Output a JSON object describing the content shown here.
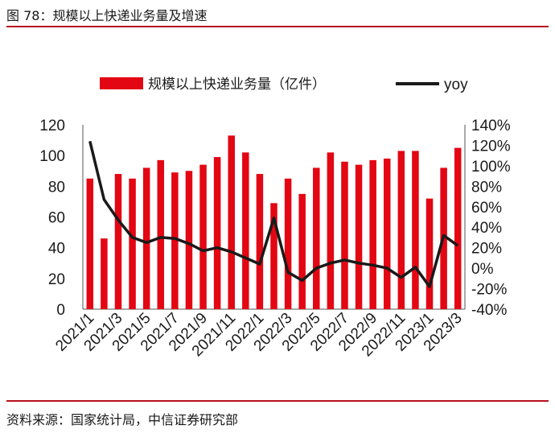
{
  "figure": {
    "title": "图 78：规模以上快递业务量及增速",
    "source": "资料来源：国家统计局，中信证券研究部"
  },
  "colors": {
    "bar": "#e30613",
    "line": "#1a1a1a",
    "rule": "#b7121d"
  },
  "chart_data": {
    "type": "bar",
    "categories": [
      "2021/1",
      "2021/2",
      "2021/3",
      "2021/4",
      "2021/5",
      "2021/6",
      "2021/7",
      "2021/8",
      "2021/9",
      "2021/10",
      "2021/11",
      "2021/12",
      "2022/1",
      "2022/2",
      "2022/3",
      "2022/4",
      "2022/5",
      "2022/6",
      "2022/7",
      "2022/8",
      "2022/9",
      "2022/10",
      "2022/11",
      "2022/12",
      "2023/1",
      "2023/2",
      "2023/3"
    ],
    "x_tick_labels": [
      "2021/1",
      "2021/3",
      "2021/5",
      "2021/7",
      "2021/9",
      "2021/11",
      "2022/1",
      "2022/3",
      "2022/5",
      "2022/7",
      "2022/9",
      "2022/11",
      "2023/1",
      "2023/3"
    ],
    "series": [
      {
        "name": "规模以上快递业务量（亿件）",
        "type": "bar",
        "axis": "left",
        "values": [
          85,
          46,
          88,
          85,
          92,
          97,
          89,
          90,
          94,
          99,
          113,
          102,
          88,
          69,
          85,
          75,
          92,
          102,
          96,
          94,
          97,
          98,
          103,
          103,
          72,
          92,
          105
        ]
      },
      {
        "name": "yoy",
        "type": "line",
        "axis": "right",
        "values": [
          1.24,
          0.67,
          0.47,
          0.3,
          0.25,
          0.3,
          0.29,
          0.24,
          0.17,
          0.2,
          0.16,
          0.1,
          0.04,
          0.49,
          -0.04,
          -0.12,
          0.0,
          0.05,
          0.08,
          0.05,
          0.03,
          0.0,
          -0.09,
          0.01,
          -0.18,
          0.32,
          0.22
        ]
      }
    ],
    "ylim_left": [
      0,
      120
    ],
    "yticks_left": [
      0,
      20,
      40,
      60,
      80,
      100,
      120
    ],
    "ylim_right": [
      -0.4,
      1.4
    ],
    "yticks_right": [
      "-40%",
      "-20%",
      "0%",
      "20%",
      "40%",
      "60%",
      "80%",
      "100%",
      "120%",
      "140%"
    ],
    "grid": false,
    "legend_position": "top-center"
  }
}
